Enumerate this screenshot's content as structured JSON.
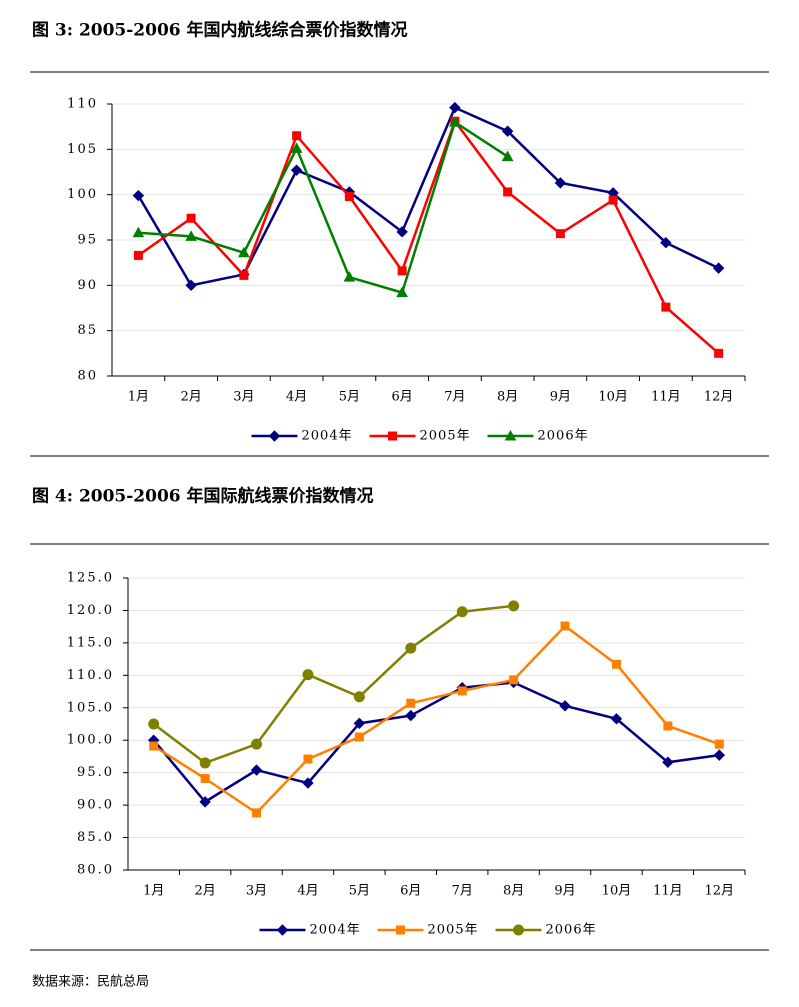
{
  "chart_data": [
    {
      "type": "line",
      "title": "图 3: 2005-2006 年国内航线综合票价指数情况",
      "categories": [
        "1月",
        "2月",
        "3月",
        "4月",
        "5月",
        "6月",
        "7月",
        "8月",
        "9月",
        "10月",
        "11月",
        "12月"
      ],
      "ylim": [
        80,
        110
      ],
      "yticks": [
        80,
        85,
        90,
        95,
        100,
        105,
        110
      ],
      "grid": true,
      "legend": "bottom",
      "series": [
        {
          "name": "2004年",
          "color": "#000080",
          "marker": "diamond",
          "values": [
            99.9,
            90.0,
            91.2,
            102.7,
            100.3,
            95.9,
            109.6,
            107.0,
            101.3,
            100.2,
            94.7,
            91.9
          ]
        },
        {
          "name": "2005年",
          "color": "#ff0000",
          "marker": "square",
          "values": [
            93.3,
            97.4,
            91.1,
            106.5,
            99.8,
            91.6,
            108.1,
            100.3,
            95.7,
            99.4,
            87.6,
            82.5
          ]
        },
        {
          "name": "2006年",
          "color": "#008000",
          "marker": "triangle",
          "values": [
            95.8,
            95.4,
            93.6,
            105.1,
            90.9,
            89.2,
            108.0,
            104.2,
            null,
            null,
            null,
            null
          ]
        }
      ]
    },
    {
      "type": "line",
      "title": "图 4: 2005-2006 年国际航线票价指数情况",
      "categories": [
        "1月",
        "2月",
        "3月",
        "4月",
        "5月",
        "6月",
        "7月",
        "8月",
        "9月",
        "10月",
        "11月",
        "12月"
      ],
      "ylim": [
        80,
        125
      ],
      "yticks": [
        {
          "value": 80,
          "label": "80.0"
        },
        {
          "value": 85,
          "label": "85.0"
        },
        {
          "value": 90,
          "label": "90.0"
        },
        {
          "value": 95,
          "label": "95.0"
        },
        {
          "value": 100,
          "label": "100.0"
        },
        {
          "value": 105,
          "label": "105.0"
        },
        {
          "value": 110,
          "label": "110.0"
        },
        {
          "value": 115,
          "label": "115.0"
        },
        {
          "value": 120,
          "label": "120.0"
        },
        {
          "value": 125,
          "label": "125.0"
        }
      ],
      "grid": true,
      "legend": "bottom",
      "series": [
        {
          "name": "2004年",
          "color": "#000080",
          "marker": "diamond",
          "values": [
            100.0,
            90.5,
            95.4,
            93.4,
            102.6,
            103.8,
            108.1,
            108.9,
            105.3,
            103.3,
            96.6,
            97.7
          ]
        },
        {
          "name": "2005年",
          "color": "#ff8000",
          "marker": "square",
          "values": [
            99.1,
            94.1,
            88.8,
            97.1,
            100.5,
            105.7,
            107.6,
            109.3,
            117.6,
            111.7,
            102.2,
            99.4
          ]
        },
        {
          "name": "2006年",
          "color": "#808000",
          "marker": "circle",
          "values": [
            102.5,
            96.5,
            99.4,
            110.1,
            106.7,
            114.2,
            119.8,
            120.7,
            null,
            null,
            null,
            null
          ]
        }
      ]
    }
  ],
  "source": "数据来源：民航总局"
}
